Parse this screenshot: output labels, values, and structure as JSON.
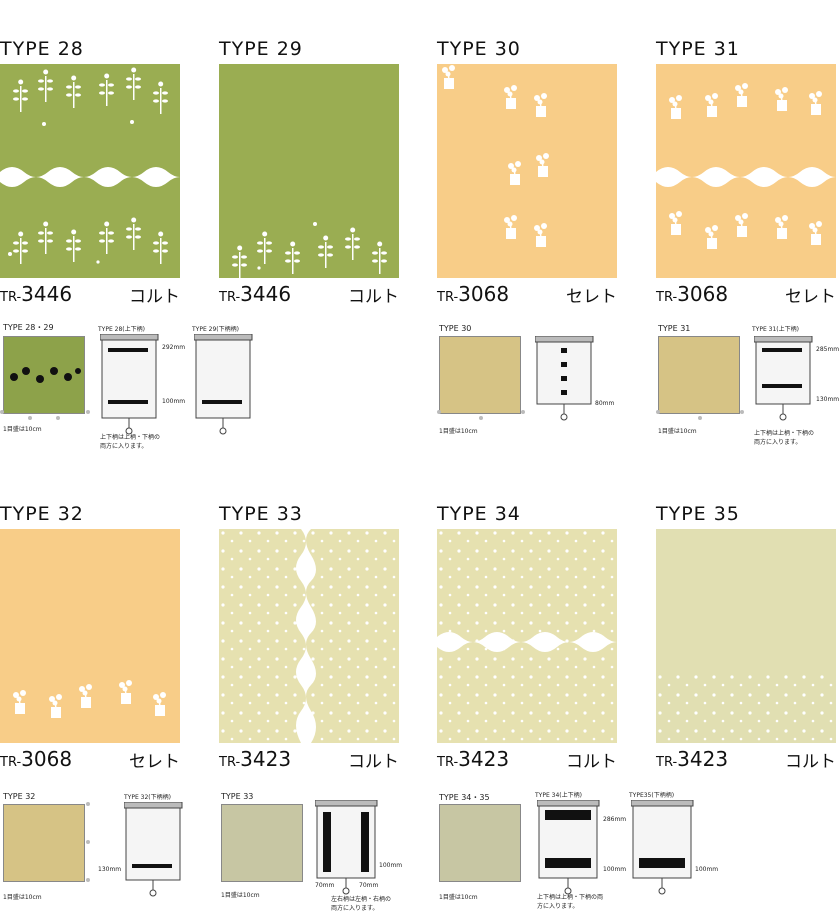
{
  "colors": {
    "green": "#9aad52",
    "orange": "#f8cd88",
    "cream": "#e6e1b0",
    "cream2": "#e1dfb2",
    "sample_green": "#8da24a",
    "sample_tan": "#d6c385",
    "sample_grey": "#c7c6a3"
  },
  "cards": [
    {
      "title": "TYPE 28",
      "pre": "TR-",
      "num": "3446",
      "material": "コルト"
    },
    {
      "title": "TYPE 29",
      "pre": "TR-",
      "num": "3446",
      "material": "コルト"
    },
    {
      "title": "TYPE 30",
      "pre": "TR-",
      "num": "3068",
      "material": "セレト"
    },
    {
      "title": "TYPE 31",
      "pre": "TR-",
      "num": "3068",
      "material": "セレト"
    },
    {
      "title": "TYPE 32",
      "pre": "TR-",
      "num": "3068",
      "material": "セレト"
    },
    {
      "title": "TYPE 33",
      "pre": "TR-",
      "num": "3423",
      "material": "コルト"
    },
    {
      "title": "TYPE 34",
      "pre": "TR-",
      "num": "3423",
      "material": "コルト"
    },
    {
      "title": "TYPE 35",
      "pre": "TR-",
      "num": "3423",
      "material": "コルト"
    }
  ],
  "details": {
    "d1": {
      "label": "TYPE 28・29",
      "scale": "1目盛は10cm",
      "b1_title": "TYPE 28(上下柄)",
      "b2_title": "TYPE 29(下柄柄)",
      "dim_top": "292mm",
      "dim_bottom": "100mm",
      "note": "上下柄は上柄・下柄の両方に入ります。"
    },
    "d2": {
      "label": "TYPE 30",
      "scale": "1目盛は10cm",
      "dim": "80mm"
    },
    "d3": {
      "label": "TYPE 31",
      "scale": "1目盛は10cm",
      "b_title": "TYPE 31(上下柄)",
      "dim_top": "285mm",
      "dim_bottom": "130mm",
      "note": "上下柄は上柄・下柄の両方に入ります。"
    },
    "d4": {
      "label": "TYPE 32",
      "scale": "1目盛は10cm",
      "b_title": "TYPE 32(下柄柄)",
      "dim": "130mm"
    },
    "d5": {
      "label": "TYPE 33",
      "scale": "1目盛は10cm",
      "dim_side": "100mm",
      "dim_l": "70mm",
      "dim_r": "70mm",
      "note": "左右柄は左柄・右柄の両方に入ります。"
    },
    "d6": {
      "label": "TYPE 34・35",
      "scale": "1目盛は10cm",
      "b1_title": "TYPE 34(上下柄)",
      "b2_title": "TYPE35(下柄柄)",
      "dim_top": "286mm",
      "dim_bottom": "100mm",
      "dim2": "100mm",
      "note": "上下柄は上柄・下柄の両方に入ります。"
    }
  }
}
